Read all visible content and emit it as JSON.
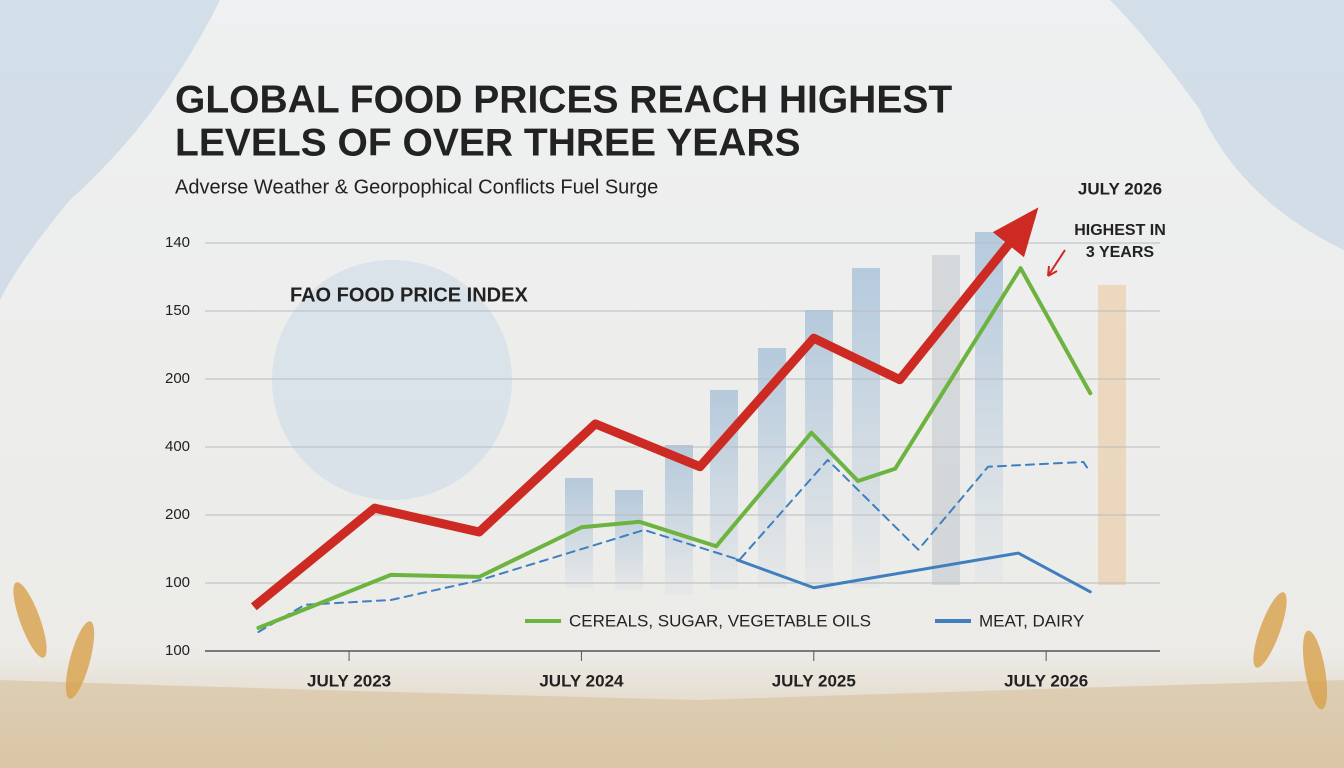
{
  "chart_data": {
    "type": "line",
    "title": "GLOBAL FOOD PRICES REACH HIGHEST LEVELS OF OVER THREE YEARS",
    "subtitle": "Adverse Weather & Georpophical Conflicts Fuel Surge",
    "annotations": [
      "FAO FOOD PRICE INDEX",
      "JULY 2026",
      "HIGHEST IN 3 YEARS"
    ],
    "xlim": [
      2022.88,
      2026.99
    ],
    "xticks": [
      {
        "value": 2023.5,
        "label": "JULY 2023"
      },
      {
        "value": 2024.5,
        "label": "JULY 2024"
      },
      {
        "value": 2025.5,
        "label": "JULY 2025"
      },
      {
        "value": 2026.5,
        "label": "JULY 2026"
      }
    ],
    "ylim": [
      0,
      6
    ],
    "yticks": [
      {
        "value": 0,
        "label": "100"
      },
      {
        "value": 1,
        "label": "100"
      },
      {
        "value": 2,
        "label": "200"
      },
      {
        "value": 3,
        "label": "400"
      },
      {
        "value": 4,
        "label": "200"
      },
      {
        "value": 5,
        "label": "150"
      },
      {
        "value": 6,
        "label": "140"
      }
    ],
    "grid": true,
    "series": [
      {
        "color": "#cc2a22",
        "width": 9,
        "arrow": true,
        "x": [
          2023.09,
          2023.61,
          2024.06,
          2024.56,
          2025.01,
          2025.5,
          2025.87,
          2026.44
        ],
        "values": [
          0.65,
          2.1,
          1.75,
          3.34,
          2.71,
          4.6,
          3.99,
          6.41
        ]
      },
      {
        "color": "#3f7fbf",
        "width": 2,
        "dashed": true,
        "x": [
          2023.11,
          2023.31,
          2023.68,
          2024.06,
          2024.77,
          2025.18,
          2025.56,
          2025.95,
          2026.25,
          2026.66,
          2026.69
        ],
        "values": [
          0.28,
          0.68,
          0.75,
          1.04,
          1.78,
          1.34,
          2.81,
          1.49,
          2.71,
          2.78,
          2.63
        ]
      },
      {
        "name": "CEREALS, SUGAR, VEGETABLE OILS",
        "color": "#6db33f",
        "width": 4,
        "x": [
          2023.11,
          2023.68,
          2024.06,
          2024.5,
          2024.75,
          2025.08,
          2025.49,
          2025.69,
          2025.85,
          2026.39,
          2026.69
        ],
        "values": [
          0.34,
          1.12,
          1.09,
          1.82,
          1.9,
          1.54,
          3.21,
          2.5,
          2.68,
          5.63,
          3.79
        ]
      },
      {
        "name": "MEAT, DAIRY",
        "color": "#3f7fbf",
        "width": 3,
        "x": [
          2025.17,
          2025.5,
          2026.38,
          2026.69
        ],
        "values": [
          1.34,
          0.93,
          1.44,
          0.87
        ]
      }
    ]
  }
}
